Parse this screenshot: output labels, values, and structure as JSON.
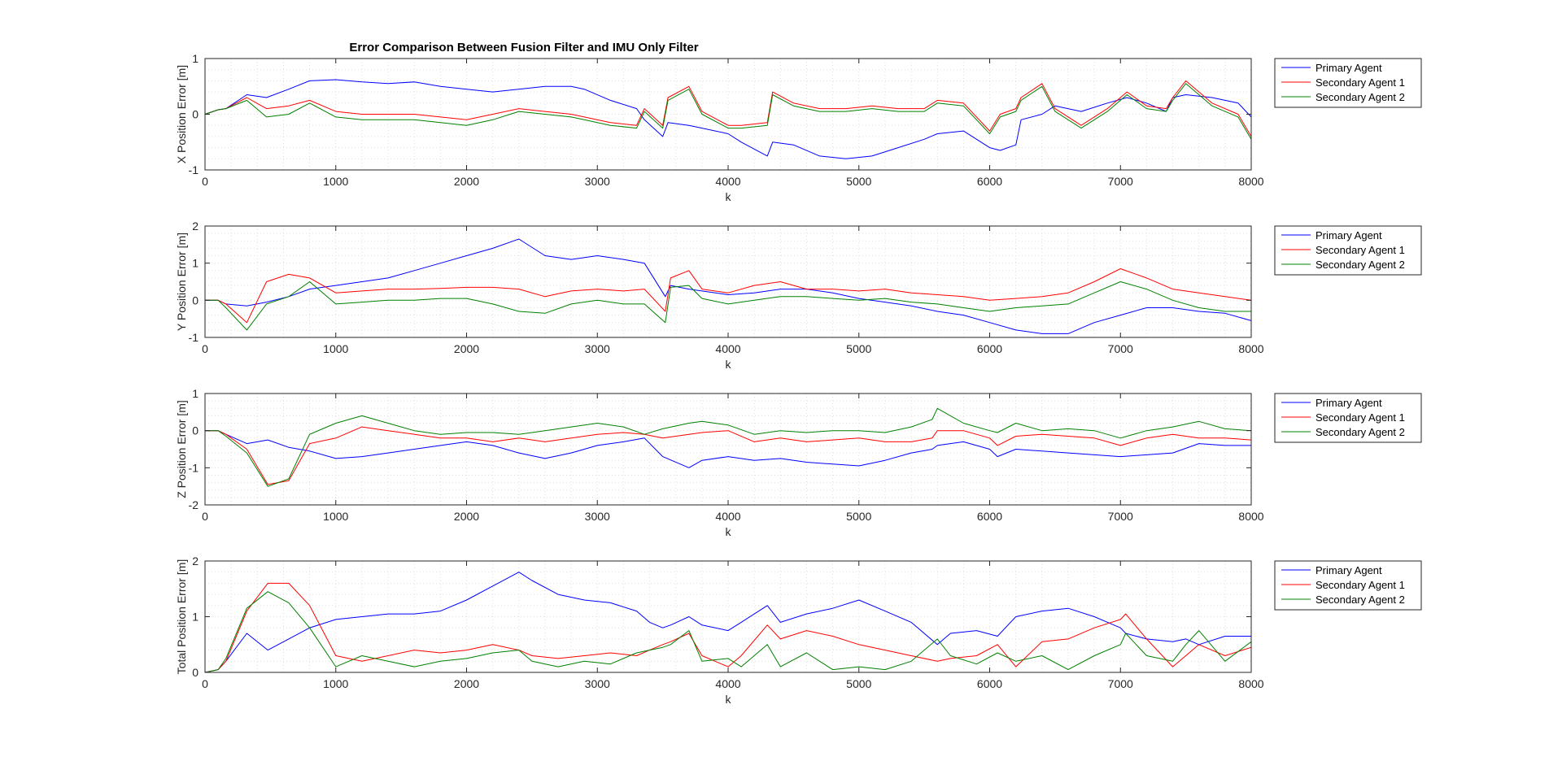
{
  "figure": {
    "title": "Error Comparison Between Fusion Filter and IMU Only Filter",
    "background": "#ffffff",
    "axis_color": "#262626",
    "grid_color": "#dfdfdf"
  },
  "chart_data": [
    {
      "type": "line",
      "title": "Error Comparison Between Fusion Filter and IMU Only Filter",
      "xlabel": "k",
      "ylabel": "X Position Error [m]",
      "xlim": [
        0,
        8000
      ],
      "ylim": [
        -1,
        1
      ],
      "xticks": [
        0,
        1000,
        2000,
        3000,
        4000,
        5000,
        6000,
        7000,
        8000
      ],
      "yticks": [
        -1,
        0,
        1
      ],
      "grid": true,
      "minor_grid": true,
      "legend": "outside-right-top",
      "x": [
        0,
        100,
        160,
        320,
        470,
        640,
        800,
        1000,
        1200,
        1400,
        1600,
        1800,
        2000,
        2200,
        2400,
        2600,
        2800,
        2900,
        3100,
        3300,
        3360,
        3500,
        3540,
        3700,
        3800,
        4000,
        4100,
        4300,
        4340,
        4500,
        4700,
        4900,
        5100,
        5300,
        5500,
        5600,
        5800,
        6000,
        6080,
        6200,
        6240,
        6400,
        6500,
        6700,
        6900,
        7050,
        7200,
        7350,
        7400,
        7500,
        7700,
        7900,
        8000
      ],
      "series": [
        {
          "name": "Primary Agent",
          "color": "#0000ff",
          "values": [
            0,
            0.08,
            0.1,
            0.35,
            0.3,
            0.45,
            0.6,
            0.62,
            0.58,
            0.55,
            0.58,
            0.5,
            0.45,
            0.4,
            0.45,
            0.5,
            0.5,
            0.45,
            0.25,
            0.1,
            -0.1,
            -0.4,
            -0.15,
            -0.2,
            -0.25,
            -0.35,
            -0.5,
            -0.75,
            -0.5,
            -0.55,
            -0.75,
            -0.8,
            -0.75,
            -0.6,
            -0.45,
            -0.35,
            -0.3,
            -0.6,
            -0.65,
            -0.55,
            -0.1,
            0,
            0.15,
            0.05,
            0.2,
            0.3,
            0.2,
            0.05,
            0.3,
            0.35,
            0.3,
            0.2,
            -0.05
          ]
        },
        {
          "name": "Secondary Agent 1",
          "color": "#ff0000",
          "values": [
            0,
            0.08,
            0.1,
            0.3,
            0.1,
            0.15,
            0.25,
            0.05,
            0,
            0,
            0,
            -0.05,
            -0.1,
            0,
            0.1,
            0.05,
            0,
            -0.05,
            -0.15,
            -0.2,
            0.1,
            -0.2,
            0.3,
            0.5,
            0.05,
            -0.2,
            -0.2,
            -0.15,
            0.4,
            0.2,
            0.1,
            0.1,
            0.15,
            0.1,
            0.1,
            0.25,
            0.2,
            -0.3,
            0,
            0.1,
            0.3,
            0.55,
            0.1,
            -0.2,
            0.1,
            0.4,
            0.15,
            0.1,
            0.3,
            0.6,
            0.2,
            0,
            -0.4
          ]
        },
        {
          "name": "Secondary Agent 2",
          "color": "#008000",
          "values": [
            0,
            0.08,
            0.1,
            0.25,
            -0.05,
            0,
            0.2,
            -0.05,
            -0.1,
            -0.1,
            -0.1,
            -0.15,
            -0.2,
            -0.1,
            0.05,
            0,
            -0.05,
            -0.1,
            -0.2,
            -0.25,
            0.05,
            -0.25,
            0.25,
            0.45,
            0,
            -0.25,
            -0.25,
            -0.2,
            0.35,
            0.15,
            0.05,
            0.05,
            0.1,
            0.05,
            0.05,
            0.2,
            0.15,
            -0.35,
            -0.05,
            0.05,
            0.25,
            0.5,
            0.05,
            -0.25,
            0.05,
            0.35,
            0.1,
            0.05,
            0.25,
            0.55,
            0.15,
            -0.05,
            -0.45
          ]
        }
      ]
    },
    {
      "type": "line",
      "xlabel": "k",
      "ylabel": "Y Position Error [m]",
      "xlim": [
        0,
        8000
      ],
      "ylim": [
        -1,
        2
      ],
      "xticks": [
        0,
        1000,
        2000,
        3000,
        4000,
        5000,
        6000,
        7000,
        8000
      ],
      "yticks": [
        -1,
        0,
        1,
        2
      ],
      "grid": true,
      "minor_grid": true,
      "legend": "outside-right-top",
      "x": [
        0,
        100,
        160,
        320,
        470,
        640,
        800,
        1000,
        1200,
        1400,
        1600,
        1800,
        2000,
        2200,
        2400,
        2600,
        2800,
        3000,
        3200,
        3360,
        3520,
        3560,
        3700,
        3800,
        4000,
        4200,
        4400,
        4600,
        4800,
        5000,
        5200,
        5400,
        5600,
        5800,
        6000,
        6200,
        6400,
        6600,
        6800,
        7000,
        7200,
        7400,
        7600,
        7800,
        8000
      ],
      "series": [
        {
          "name": "Primary Agent",
          "color": "#0000ff",
          "values": [
            0,
            0,
            -0.1,
            -0.15,
            -0.05,
            0.1,
            0.3,
            0.4,
            0.5,
            0.6,
            0.8,
            1.0,
            1.2,
            1.4,
            1.65,
            1.2,
            1.1,
            1.2,
            1.1,
            1.0,
            0.1,
            0.4,
            0.3,
            0.25,
            0.15,
            0.2,
            0.3,
            0.3,
            0.2,
            0.05,
            -0.05,
            -0.15,
            -0.3,
            -0.4,
            -0.6,
            -0.8,
            -0.9,
            -0.9,
            -0.6,
            -0.4,
            -0.2,
            -0.2,
            -0.3,
            -0.35,
            -0.55
          ]
        },
        {
          "name": "Secondary Agent 1",
          "color": "#ff0000",
          "values": [
            0,
            0,
            -0.1,
            -0.6,
            0.5,
            0.7,
            0.6,
            0.2,
            0.25,
            0.3,
            0.3,
            0.32,
            0.35,
            0.35,
            0.3,
            0.1,
            0.25,
            0.3,
            0.25,
            0.3,
            -0.3,
            0.6,
            0.8,
            0.3,
            0.2,
            0.4,
            0.5,
            0.3,
            0.3,
            0.25,
            0.3,
            0.2,
            0.15,
            0.1,
            0,
            0.05,
            0.1,
            0.2,
            0.5,
            0.85,
            0.6,
            0.3,
            0.2,
            0.1,
            0
          ]
        },
        {
          "name": "Secondary Agent 2",
          "color": "#008000",
          "values": [
            0,
            0,
            -0.2,
            -0.8,
            -0.1,
            0.1,
            0.5,
            -0.1,
            -0.05,
            0,
            0,
            0.05,
            0.05,
            -0.1,
            -0.3,
            -0.35,
            -0.1,
            0,
            -0.1,
            -0.1,
            -0.6,
            0.35,
            0.4,
            0.05,
            -0.1,
            0,
            0.1,
            0.1,
            0.05,
            0,
            0.05,
            -0.05,
            -0.1,
            -0.2,
            -0.3,
            -0.2,
            -0.15,
            -0.1,
            0.2,
            0.5,
            0.3,
            0,
            -0.2,
            -0.3,
            -0.3
          ]
        }
      ]
    },
    {
      "type": "line",
      "xlabel": "k",
      "ylabel": "Z Position Error [m]",
      "xlim": [
        0,
        8000
      ],
      "ylim": [
        -2,
        1
      ],
      "xticks": [
        0,
        1000,
        2000,
        3000,
        4000,
        5000,
        6000,
        7000,
        8000
      ],
      "yticks": [
        -2,
        -1,
        0,
        1
      ],
      "grid": true,
      "minor_grid": true,
      "legend": "outside-right-top",
      "x": [
        0,
        100,
        160,
        320,
        480,
        640,
        800,
        1000,
        1200,
        1400,
        1600,
        1800,
        2000,
        2200,
        2400,
        2600,
        2800,
        3000,
        3200,
        3360,
        3500,
        3700,
        3800,
        4000,
        4200,
        4400,
        4600,
        4800,
        5000,
        5200,
        5400,
        5560,
        5600,
        5800,
        6000,
        6060,
        6200,
        6400,
        6600,
        6800,
        7000,
        7200,
        7400,
        7600,
        7800,
        8000
      ],
      "series": [
        {
          "name": "Primary Agent",
          "color": "#0000ff",
          "values": [
            0,
            0,
            -0.1,
            -0.35,
            -0.25,
            -0.45,
            -0.55,
            -0.75,
            -0.7,
            -0.6,
            -0.5,
            -0.4,
            -0.3,
            -0.4,
            -0.6,
            -0.75,
            -0.6,
            -0.4,
            -0.3,
            -0.2,
            -0.7,
            -1.0,
            -0.8,
            -0.7,
            -0.8,
            -0.75,
            -0.85,
            -0.9,
            -0.95,
            -0.8,
            -0.6,
            -0.5,
            -0.4,
            -0.3,
            -0.5,
            -0.7,
            -0.5,
            -0.55,
            -0.6,
            -0.65,
            -0.7,
            -0.65,
            -0.6,
            -0.35,
            -0.4,
            -0.4
          ]
        },
        {
          "name": "Secondary Agent 1",
          "color": "#ff0000",
          "values": [
            0,
            0,
            -0.1,
            -0.5,
            -1.45,
            -1.35,
            -0.35,
            -0.2,
            0.1,
            0,
            -0.1,
            -0.2,
            -0.2,
            -0.3,
            -0.2,
            -0.3,
            -0.2,
            -0.1,
            -0.05,
            -0.1,
            -0.2,
            -0.1,
            -0.05,
            0,
            -0.3,
            -0.2,
            -0.3,
            -0.25,
            -0.2,
            -0.3,
            -0.3,
            -0.2,
            0,
            0,
            -0.2,
            -0.4,
            -0.15,
            -0.1,
            -0.15,
            -0.2,
            -0.4,
            -0.2,
            -0.1,
            -0.2,
            -0.2,
            -0.25
          ]
        },
        {
          "name": "Secondary Agent 2",
          "color": "#008000",
          "values": [
            0,
            0,
            -0.15,
            -0.6,
            -1.5,
            -1.3,
            -0.1,
            0.2,
            0.4,
            0.2,
            0,
            -0.1,
            -0.05,
            -0.05,
            -0.1,
            0,
            0.1,
            0.2,
            0.1,
            -0.1,
            0.05,
            0.2,
            0.25,
            0.15,
            -0.1,
            0,
            -0.05,
            0,
            0,
            -0.05,
            0.1,
            0.3,
            0.6,
            0.2,
            0,
            -0.05,
            0.2,
            0,
            0.05,
            0,
            -0.2,
            0,
            0.1,
            0.25,
            0.05,
            0
          ]
        }
      ]
    },
    {
      "type": "line",
      "xlabel": "k",
      "ylabel": "Total Position Error [m]",
      "xlim": [
        0,
        8000
      ],
      "ylim": [
        0,
        2
      ],
      "xticks": [
        0,
        1000,
        2000,
        3000,
        4000,
        5000,
        6000,
        7000,
        8000
      ],
      "yticks": [
        0,
        1,
        2
      ],
      "grid": true,
      "minor_grid": true,
      "legend": "outside-right-top",
      "x": [
        0,
        100,
        160,
        320,
        480,
        640,
        800,
        1000,
        1200,
        1400,
        1600,
        1800,
        2000,
        2200,
        2400,
        2500,
        2700,
        2900,
        3100,
        3300,
        3400,
        3500,
        3560,
        3700,
        3800,
        4000,
        4100,
        4300,
        4400,
        4600,
        4800,
        5000,
        5200,
        5400,
        5600,
        5700,
        5900,
        6060,
        6200,
        6400,
        6600,
        6800,
        7000,
        7040,
        7200,
        7400,
        7500,
        7600,
        7800,
        8000
      ],
      "series": [
        {
          "name": "Primary Agent",
          "color": "#0000ff",
          "values": [
            0,
            0.05,
            0.2,
            0.7,
            0.4,
            0.6,
            0.8,
            0.95,
            1.0,
            1.05,
            1.05,
            1.1,
            1.3,
            1.55,
            1.8,
            1.65,
            1.4,
            1.3,
            1.25,
            1.1,
            0.9,
            0.8,
            0.85,
            1.0,
            0.85,
            0.75,
            0.9,
            1.2,
            0.9,
            1.05,
            1.15,
            1.3,
            1.1,
            0.9,
            0.5,
            0.7,
            0.75,
            0.65,
            1.0,
            1.1,
            1.15,
            1.0,
            0.8,
            0.7,
            0.6,
            0.55,
            0.6,
            0.5,
            0.65,
            0.65
          ]
        },
        {
          "name": "Secondary Agent 1",
          "color": "#ff0000",
          "values": [
            0,
            0.05,
            0.2,
            1.1,
            1.6,
            1.6,
            1.2,
            0.3,
            0.2,
            0.3,
            0.4,
            0.35,
            0.4,
            0.5,
            0.4,
            0.3,
            0.25,
            0.3,
            0.35,
            0.3,
            0.4,
            0.5,
            0.55,
            0.7,
            0.3,
            0.1,
            0.3,
            0.85,
            0.6,
            0.75,
            0.65,
            0.5,
            0.4,
            0.3,
            0.2,
            0.25,
            0.3,
            0.5,
            0.1,
            0.55,
            0.6,
            0.8,
            0.95,
            1.05,
            0.6,
            0.1,
            0.3,
            0.5,
            0.3,
            0.45
          ]
        },
        {
          "name": "Secondary Agent 2",
          "color": "#008000",
          "values": [
            0,
            0.05,
            0.25,
            1.15,
            1.45,
            1.25,
            0.8,
            0.1,
            0.3,
            0.2,
            0.1,
            0.2,
            0.25,
            0.35,
            0.4,
            0.2,
            0.1,
            0.2,
            0.15,
            0.35,
            0.4,
            0.45,
            0.5,
            0.75,
            0.2,
            0.25,
            0.1,
            0.5,
            0.1,
            0.35,
            0.05,
            0.1,
            0.05,
            0.2,
            0.6,
            0.3,
            0.15,
            0.35,
            0.2,
            0.3,
            0.05,
            0.3,
            0.5,
            0.7,
            0.3,
            0.2,
            0.5,
            0.75,
            0.2,
            0.55
          ]
        }
      ]
    }
  ]
}
